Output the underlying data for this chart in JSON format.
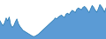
{
  "values": [
    420,
    390,
    370,
    400,
    450,
    420,
    460,
    380,
    350,
    370,
    410,
    440,
    390,
    360,
    340,
    320,
    310,
    300,
    290,
    280,
    270,
    260,
    255,
    260,
    270,
    280,
    295,
    310,
    325,
    340,
    355,
    370,
    385,
    400,
    415,
    430,
    450,
    440,
    460,
    470,
    480,
    465,
    455,
    490,
    500,
    485,
    510,
    530,
    520,
    505,
    540,
    555,
    545,
    535,
    560,
    570,
    555,
    530,
    505,
    545,
    580,
    560,
    530,
    510,
    545,
    590,
    570,
    545,
    510,
    555
  ],
  "fill_color": "#5b9bd5",
  "line_color": "#2176ae",
  "background_color": "#ffffff"
}
